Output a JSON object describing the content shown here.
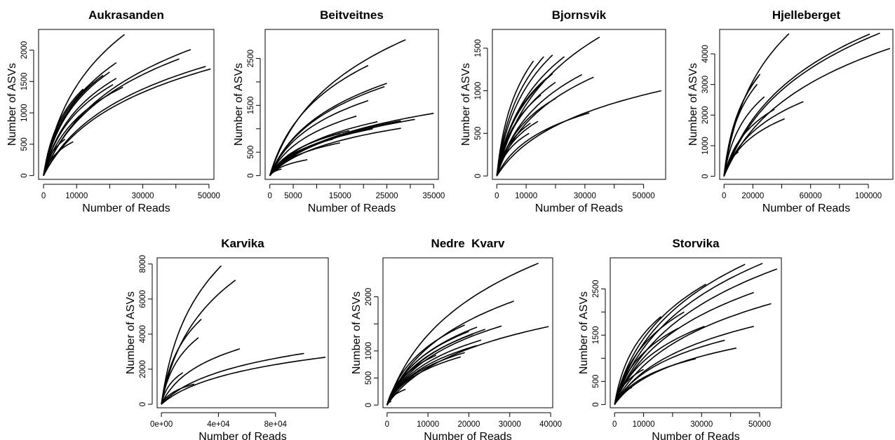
{
  "chart_data": [
    {
      "type": "line",
      "title": "Aukrasanden",
      "xlabel": "Number of Reads",
      "ylabel": "Number of ASVs",
      "xlim": [
        -1500,
        51500
      ],
      "ylim": [
        -60,
        2330
      ],
      "xticks": [
        0,
        10000,
        20000,
        30000,
        40000,
        50000
      ],
      "xtick_labels": [
        "0",
        "10000",
        "",
        "30000",
        "",
        "50000"
      ],
      "yticks": [
        0,
        500,
        1000,
        1500,
        2000
      ],
      "ytick_labels": [
        "0",
        "500",
        "1000",
        "1500",
        "2000"
      ],
      "series": [
        {
          "x": 24500,
          "y": 2250
        },
        {
          "x": 44500,
          "y": 2010
        },
        {
          "x": 41000,
          "y": 1860
        },
        {
          "x": 22000,
          "y": 1800
        },
        {
          "x": 49000,
          "y": 1740
        },
        {
          "x": 50500,
          "y": 1700
        },
        {
          "x": 20000,
          "y": 1650
        },
        {
          "x": 18000,
          "y": 1600
        },
        {
          "x": 22000,
          "y": 1550
        },
        {
          "x": 15000,
          "y": 1500
        },
        {
          "x": 21000,
          "y": 1450
        },
        {
          "x": 24000,
          "y": 1410
        },
        {
          "x": 12000,
          "y": 1380
        },
        {
          "x": 6500,
          "y": 580
        },
        {
          "x": 9000,
          "y": 540
        }
      ]
    },
    {
      "type": "line",
      "title": "Beitveitnes",
      "xlabel": "Number of Reads",
      "ylabel": "Number of ASVs",
      "xlim": [
        -1000,
        36000
      ],
      "ylim": [
        -80,
        3120
      ],
      "xticks": [
        0,
        5000,
        10000,
        15000,
        20000,
        25000,
        30000,
        35000
      ],
      "xtick_labels": [
        "0",
        "5000",
        "",
        "15000",
        "",
        "25000",
        "",
        "35000"
      ],
      "yticks": [
        0,
        500,
        1000,
        1500,
        2000,
        2500
      ],
      "ytick_labels": [
        "0",
        "500",
        "",
        "1500",
        "",
        "2500"
      ],
      "series": [
        {
          "x": 29000,
          "y": 2900
        },
        {
          "x": 21000,
          "y": 2350
        },
        {
          "x": 25000,
          "y": 1970
        },
        {
          "x": 24500,
          "y": 1900
        },
        {
          "x": 21000,
          "y": 1600
        },
        {
          "x": 35000,
          "y": 1330
        },
        {
          "x": 18500,
          "y": 1270
        },
        {
          "x": 31000,
          "y": 1200
        },
        {
          "x": 28000,
          "y": 1170
        },
        {
          "x": 23000,
          "y": 1150
        },
        {
          "x": 28000,
          "y": 1010
        },
        {
          "x": 22000,
          "y": 1000
        },
        {
          "x": 17000,
          "y": 960
        },
        {
          "x": 19000,
          "y": 940
        },
        {
          "x": 15000,
          "y": 900
        },
        {
          "x": 13500,
          "y": 780
        },
        {
          "x": 15000,
          "y": 700
        },
        {
          "x": 8000,
          "y": 340
        },
        {
          "x": 2500,
          "y": 140
        }
      ]
    },
    {
      "type": "line",
      "title": "Bjornsvik",
      "xlabel": "Number of Reads",
      "ylabel": "Number of ASVs",
      "xlim": [
        -1500,
        57500
      ],
      "ylim": [
        -40,
        1720
      ],
      "xticks": [
        0,
        10000,
        20000,
        30000,
        40000,
        50000
      ],
      "xtick_labels": [
        "0",
        "10000",
        "",
        "30000",
        "",
        "50000"
      ],
      "yticks": [
        0,
        500,
        1000,
        1500
      ],
      "ytick_labels": [
        "0",
        "500",
        "1000",
        "1500"
      ],
      "series": [
        {
          "x": 35000,
          "y": 1630
        },
        {
          "x": 19000,
          "y": 1420
        },
        {
          "x": 16000,
          "y": 1400
        },
        {
          "x": 12500,
          "y": 1350
        },
        {
          "x": 23000,
          "y": 1400
        },
        {
          "x": 19000,
          "y": 1200
        },
        {
          "x": 29000,
          "y": 1190
        },
        {
          "x": 17000,
          "y": 1150
        },
        {
          "x": 33000,
          "y": 1160
        },
        {
          "x": 20000,
          "y": 1100
        },
        {
          "x": 56000,
          "y": 1000
        },
        {
          "x": 15000,
          "y": 950
        },
        {
          "x": 20000,
          "y": 910
        },
        {
          "x": 31500,
          "y": 740
        },
        {
          "x": 14000,
          "y": 640
        },
        {
          "x": 11500,
          "y": 620
        },
        {
          "x": 11000,
          "y": 500
        },
        {
          "x": 1000,
          "y": 70
        }
      ]
    },
    {
      "type": "line",
      "title": "Hjelleberget",
      "xlabel": "Number of Reads",
      "ylabel": "Number of ASVs",
      "xlim": [
        -3000,
        117000
      ],
      "ylim": [
        -100,
        4800
      ],
      "xticks": [
        0,
        20000,
        40000,
        60000,
        80000,
        100000
      ],
      "xtick_labels": [
        "0",
        "20000",
        "",
        "60000",
        "",
        "100000"
      ],
      "yticks": [
        0,
        1000,
        2000,
        3000,
        4000
      ],
      "ytick_labels": [
        "0",
        "1000",
        "2000",
        "3000",
        "4000"
      ],
      "series": [
        {
          "x": 45000,
          "y": 4660
        },
        {
          "x": 108000,
          "y": 4680
        },
        {
          "x": 101000,
          "y": 4650
        },
        {
          "x": 115000,
          "y": 4180
        },
        {
          "x": 25000,
          "y": 3340
        },
        {
          "x": 24000,
          "y": 3270
        },
        {
          "x": 23000,
          "y": 3010
        },
        {
          "x": 28000,
          "y": 2600
        },
        {
          "x": 55000,
          "y": 2440
        },
        {
          "x": 35000,
          "y": 2190
        },
        {
          "x": 42000,
          "y": 1880
        },
        {
          "x": 10000,
          "y": 800
        }
      ]
    },
    {
      "type": "line",
      "title": "Karvika",
      "xlabel": "Number of Reads",
      "ylabel": "Number of ASVs",
      "xlim": [
        -3000,
        117000
      ],
      "ylim": [
        -200,
        8350
      ],
      "xticks": [
        0,
        40000,
        80000
      ],
      "xtick_labels": [
        "0e+00",
        "4e+04",
        "8e+04"
      ],
      "yticks": [
        0,
        2000,
        4000,
        6000,
        8000
      ],
      "ytick_labels": [
        "0",
        "2000",
        "4000",
        "6000",
        "8000"
      ],
      "series": [
        {
          "x": 42000,
          "y": 7900
        },
        {
          "x": 52000,
          "y": 7080
        },
        {
          "x": 28000,
          "y": 4850
        },
        {
          "x": 26000,
          "y": 3800
        },
        {
          "x": 55000,
          "y": 3160
        },
        {
          "x": 100000,
          "y": 2900
        },
        {
          "x": 115000,
          "y": 2680
        },
        {
          "x": 15000,
          "y": 1800
        },
        {
          "x": 23000,
          "y": 1150
        }
      ]
    },
    {
      "type": "line",
      "title": "Nedre  Kvarv",
      "xlabel": "Number of Reads",
      "ylabel": "Number of ASVs",
      "xlim": [
        -1000,
        40500
      ],
      "ylim": [
        -50,
        2720
      ],
      "xticks": [
        0,
        10000,
        20000,
        30000,
        40000
      ],
      "xtick_labels": [
        "0",
        "10000",
        "20000",
        "30000",
        "40000"
      ],
      "yticks": [
        0,
        500,
        1000,
        1500,
        2000
      ],
      "ytick_labels": [
        "0",
        "500",
        "1000",
        "",
        "2000"
      ],
      "series": [
        {
          "x": 37000,
          "y": 2620
        },
        {
          "x": 31000,
          "y": 1920
        },
        {
          "x": 39500,
          "y": 1450
        },
        {
          "x": 28000,
          "y": 1460
        },
        {
          "x": 19000,
          "y": 1480
        },
        {
          "x": 22000,
          "y": 1440
        },
        {
          "x": 24000,
          "y": 1400
        },
        {
          "x": 20000,
          "y": 1360
        },
        {
          "x": 21000,
          "y": 1310
        },
        {
          "x": 23000,
          "y": 1200
        },
        {
          "x": 22000,
          "y": 1100
        },
        {
          "x": 19000,
          "y": 970
        },
        {
          "x": 18000,
          "y": 890
        },
        {
          "x": 12000,
          "y": 920
        },
        {
          "x": 7500,
          "y": 720
        },
        {
          "x": 4500,
          "y": 420
        },
        {
          "x": 4500,
          "y": 290
        },
        {
          "x": 2000,
          "y": 210
        },
        {
          "x": 1000,
          "y": 70
        }
      ]
    },
    {
      "type": "line",
      "title": "Storvika",
      "xlabel": "Number of Reads",
      "ylabel": "Number of ASVs",
      "xlim": [
        -1500,
        57500
      ],
      "ylim": [
        -70,
        3170
      ],
      "xticks": [
        0,
        10000,
        20000,
        30000,
        40000,
        50000
      ],
      "xtick_labels": [
        "0",
        "10000",
        "",
        "30000",
        "",
        "50000"
      ],
      "yticks": [
        0,
        500,
        1000,
        1500,
        2000,
        2500
      ],
      "ytick_labels": [
        "0",
        "500",
        "",
        "1500",
        "",
        "2500"
      ],
      "series": [
        {
          "x": 45000,
          "y": 3030
        },
        {
          "x": 51000,
          "y": 3050
        },
        {
          "x": 56000,
          "y": 2930
        },
        {
          "x": 31500,
          "y": 2600
        },
        {
          "x": 48000,
          "y": 2420
        },
        {
          "x": 54000,
          "y": 2180
        },
        {
          "x": 24000,
          "y": 2000
        },
        {
          "x": 16000,
          "y": 1900
        },
        {
          "x": 31000,
          "y": 1690
        },
        {
          "x": 48000,
          "y": 1690
        },
        {
          "x": 22000,
          "y": 1650
        },
        {
          "x": 38000,
          "y": 1390
        },
        {
          "x": 42000,
          "y": 1220
        },
        {
          "x": 28000,
          "y": 990
        },
        {
          "x": 10000,
          "y": 760
        },
        {
          "x": 6000,
          "y": 370
        }
      ]
    }
  ]
}
